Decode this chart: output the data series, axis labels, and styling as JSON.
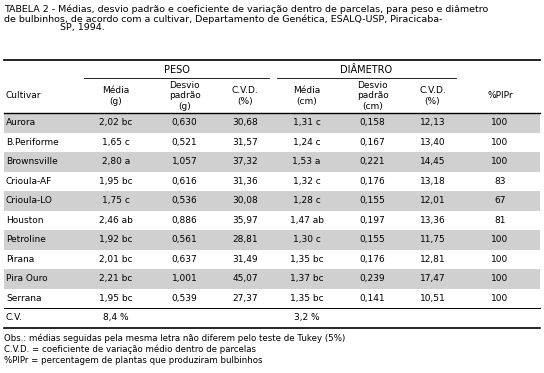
{
  "title_line1": "TABELA 2 - Médias, desvio padrão e coeficiente de variação dentro de parcelas, para peso e diâmetro",
  "title_line2": "de bulbinhos, de acordo com a cultivar, Departamento de Genética, ESALQ-USP, Piracicaba-",
  "title_line3": "SP, 1994.",
  "rows": [
    [
      "Aurora",
      "2,02 bc",
      "0,630",
      "30,68",
      "1,31 c",
      "0,158",
      "12,13",
      "100"
    ],
    [
      "B.Periforme",
      "1,65 c",
      "0,521",
      "31,57",
      "1,24 c",
      "0,167",
      "13,40",
      "100"
    ],
    [
      "Brownsville",
      "2,80 a",
      "1,057",
      "37,32",
      "1,53 a",
      "0,221",
      "14,45",
      "100"
    ],
    [
      "Crioula-AF",
      "1,95 bc",
      "0,616",
      "31,36",
      "1,32 c",
      "0,176",
      "13,18",
      "83"
    ],
    [
      "Crioula-LO",
      "1,75 c",
      "0,536",
      "30,08",
      "1,28 c",
      "0,155",
      "12,01",
      "67"
    ],
    [
      "Houston",
      "2,46 ab",
      "0,886",
      "35,97",
      "1,47 ab",
      "0,197",
      "13,36",
      "81"
    ],
    [
      "Petroline",
      "1,92 bc",
      "0,561",
      "28,81",
      "1,30 c",
      "0,155",
      "11,75",
      "100"
    ],
    [
      "Pirana",
      "2,01 bc",
      "0,637",
      "31,49",
      "1,35 bc",
      "0,176",
      "12,81",
      "100"
    ],
    [
      "Pira Ouro",
      "2,21 bc",
      "1,001",
      "45,07",
      "1,37 bc",
      "0,239",
      "17,47",
      "100"
    ],
    [
      "Serrana",
      "1,95 bc",
      "0,539",
      "27,37",
      "1,35 bc",
      "0,141",
      "10,51",
      "100"
    ]
  ],
  "cv_row": [
    "C.V.",
    "8,4 %",
    "",
    "",
    "3,2 %",
    "",
    "",
    ""
  ],
  "footnotes": [
    "Obs.: médias seguidas pela mesma letra não diferem pelo teste de Tukey (5%)",
    "C.V.D. = coeficiente de variação médio dentro de parcelas",
    "%PIPr = percentagem de plantas que produziram bulbinhos"
  ],
  "shaded_rows": [
    0,
    2,
    4,
    6,
    8
  ],
  "shade_color": "#d0d0d0",
  "bg_color": "#ffffff",
  "font_size": 6.5,
  "title_font_size": 6.8,
  "footnote_font_size": 6.2
}
